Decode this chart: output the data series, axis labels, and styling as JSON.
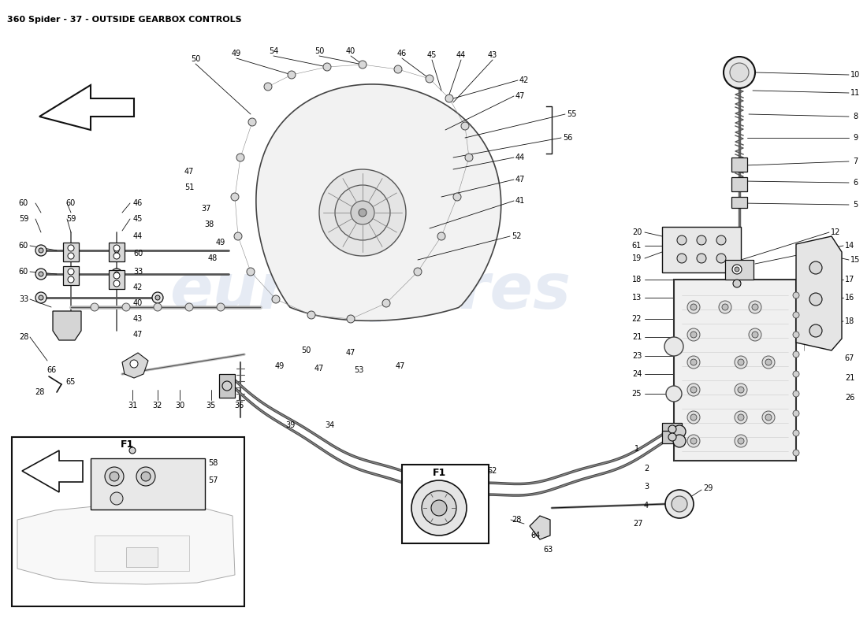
{
  "title": "360 Spider - 37 - OUTSIDE GEARBOX CONTROLS",
  "title_fontsize": 8,
  "background_color": "#ffffff",
  "watermark_text": "eurospares",
  "watermark_color": "#c8d4e8",
  "watermark_fontsize": 58,
  "fig_width": 11.0,
  "fig_height": 8.0,
  "dpi": 100,
  "line_color": "#111111",
  "label_fontsize": 7
}
